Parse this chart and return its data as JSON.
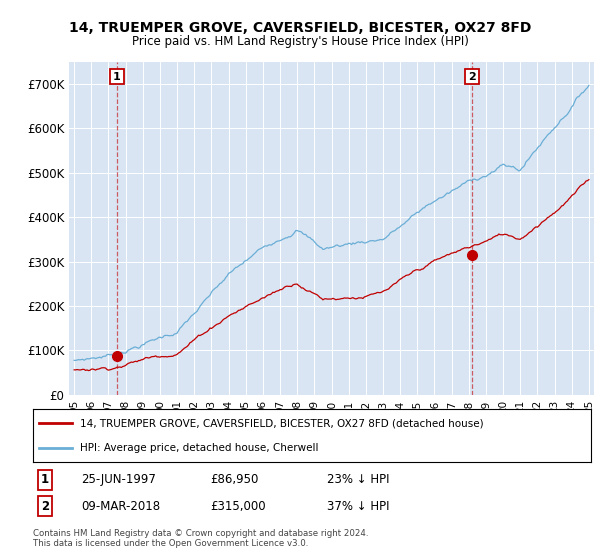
{
  "title": "14, TRUEMPER GROVE, CAVERSFIELD, BICESTER, OX27 8FD",
  "subtitle": "Price paid vs. HM Land Registry's House Price Index (HPI)",
  "ylim": [
    0,
    750000
  ],
  "yticks": [
    0,
    100000,
    200000,
    300000,
    400000,
    500000,
    600000,
    700000
  ],
  "ytick_labels": [
    "£0",
    "£100K",
    "£200K",
    "£300K",
    "£400K",
    "£500K",
    "£600K",
    "£700K"
  ],
  "hpi_color": "#6aaed6",
  "price_color": "#c00000",
  "background_color": "#d9e5f3",
  "sale1_year": 1997.49,
  "sale1_price": 86950,
  "sale2_year": 2018.19,
  "sale2_price": 315000,
  "legend_entry1": "14, TRUEMPER GROVE, CAVERSFIELD, BICESTER, OX27 8FD (detached house)",
  "legend_entry2": "HPI: Average price, detached house, Cherwell",
  "table_row1": [
    "1",
    "25-JUN-1997",
    "£86,950",
    "23% ↓ HPI"
  ],
  "table_row2": [
    "2",
    "09-MAR-2018",
    "£315,000",
    "37% ↓ HPI"
  ],
  "footer": "Contains HM Land Registry data © Crown copyright and database right 2024.\nThis data is licensed under the Open Government Licence v3.0.",
  "xlim_start": 1994.7,
  "xlim_end": 2025.3,
  "xtick_start": 1995,
  "xtick_end": 2025
}
